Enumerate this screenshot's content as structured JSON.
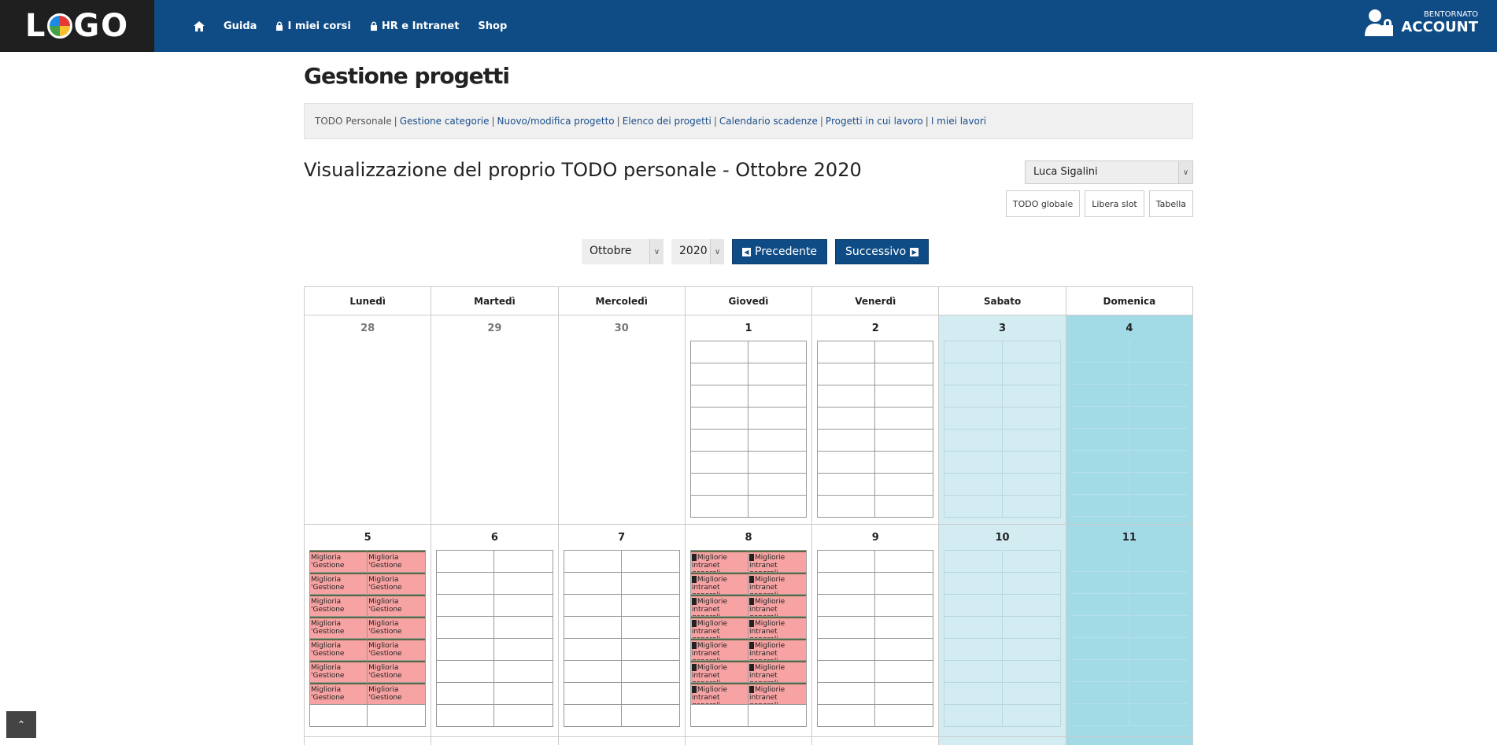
{
  "header": {
    "logo": "LOGO",
    "nav": [
      {
        "label": "",
        "icon": "home-icon"
      },
      {
        "label": "Guida"
      },
      {
        "label": "I miei corsi",
        "icon": "lock-icon"
      },
      {
        "label": "HR e Intranet",
        "icon": "lock-icon"
      },
      {
        "label": "Shop"
      }
    ],
    "account_greeting": "BENTORNATO",
    "account_label": "ACCOUNT"
  },
  "page": {
    "title": "Gestione progetti",
    "breadcrumb": {
      "current": "TODO Personale",
      "links": [
        "Gestione categorie",
        "Nuovo/modifica progetto",
        "Elenco dei progetti",
        "Calendario scadenze",
        "Progetti in cui lavoro",
        "I miei lavori"
      ]
    },
    "subtitle": "Visualizzazione del proprio TODO personale - Ottobre 2020",
    "user_select": "Luca Sigalini",
    "mini_buttons": [
      "TODO globale",
      "Libera slot",
      "Tabella"
    ],
    "month_select": "Ottobre",
    "year_select": "2020",
    "prev_label": "Precedente",
    "next_label": "Successivo"
  },
  "calendar": {
    "weekdays": [
      "Lunedì",
      "Martedì",
      "Mercoledì",
      "Giovedì",
      "Venerdì",
      "Sabato",
      "Domenica"
    ],
    "week1": [
      "28",
      "29",
      "30",
      "1",
      "2",
      "3",
      "4"
    ],
    "week2": [
      "5",
      "6",
      "7",
      "8",
      "9",
      "10",
      "11"
    ],
    "task_monday": "Miglioria 'Gestione",
    "task_thursday": "Migliorie intranet generali"
  },
  "colors": {
    "nav_bg": "#0f4c85",
    "saturday": "#d2ecf1",
    "sunday": "#a2dbe6",
    "busy_slot": "#f7a3a3"
  }
}
